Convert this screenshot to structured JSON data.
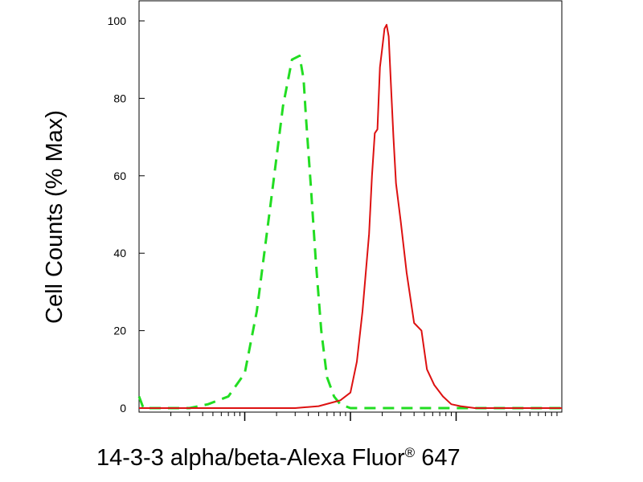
{
  "chart_data": {
    "type": "line",
    "title": "",
    "xlabel_main": "14-3-3 alpha/beta-Alexa Fluor",
    "xlabel_sup": "®",
    "xlabel_tail": " 647",
    "ylabel": "Cell Counts (% Max)",
    "x_scale": "log",
    "xlim": [
      10,
      100000
    ],
    "ylim": [
      0,
      100
    ],
    "yticks": [
      "0",
      "20",
      "40",
      "60",
      "80",
      "100"
    ],
    "ytick_values": [
      0,
      20,
      40,
      60,
      80,
      100
    ],
    "grid": false,
    "legend": "none",
    "series": [
      {
        "style": "dashed",
        "color": "#22dd22",
        "x": [
          10,
          11,
          30,
          45,
          70,
          100,
          130,
          180,
          230,
          280,
          330,
          360,
          380,
          420,
          470,
          530,
          600,
          700,
          800,
          1000,
          2000,
          10000,
          100000
        ],
        "y": [
          3,
          0,
          0,
          1,
          3,
          9,
          25,
          55,
          78,
          90,
          91,
          85,
          75,
          58,
          38,
          20,
          8,
          3,
          1,
          0,
          0,
          0,
          0
        ]
      },
      {
        "style": "solid",
        "color": "#dd1111",
        "x": [
          10,
          300,
          500,
          800,
          1000,
          1150,
          1300,
          1500,
          1600,
          1700,
          1800,
          1900,
          2000,
          2100,
          2200,
          2300,
          2450,
          2550,
          2700,
          3000,
          3400,
          4000,
          4700,
          5300,
          6200,
          7500,
          9000,
          11000,
          15000,
          30000,
          100000
        ],
        "y": [
          0,
          0,
          0.5,
          2,
          4,
          12,
          25,
          45,
          60,
          71,
          72,
          88,
          93,
          98,
          99,
          96,
          80,
          70,
          58,
          48,
          35,
          22,
          20,
          10,
          6,
          3,
          1,
          0.5,
          0,
          0,
          0
        ]
      }
    ]
  }
}
